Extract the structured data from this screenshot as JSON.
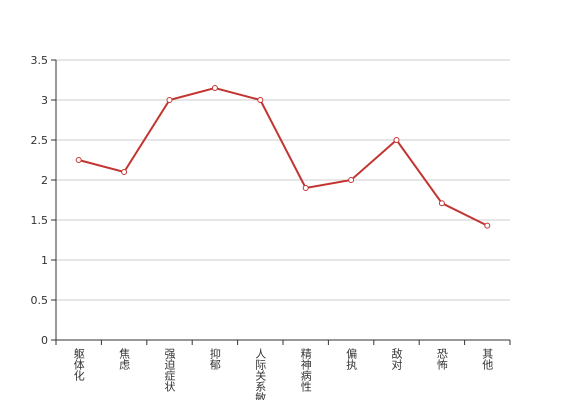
{
  "chart_data": {
    "type": "line",
    "categories": [
      "躯体化",
      "焦虑",
      "强迫症状",
      "抑郁",
      "人际关系敏感",
      "精神病性",
      "偏执",
      "敌对",
      "恐怖",
      "其他"
    ],
    "series": [
      {
        "color": "#c23531",
        "values": [
          2.25,
          2.1,
          3.0,
          3.15,
          3.0,
          1.9,
          2.0,
          2.5,
          1.71,
          1.43
        ]
      }
    ],
    "ylim": [
      0,
      3.5
    ],
    "yticks": [
      0,
      0.5,
      1,
      1.5,
      2,
      2.5,
      3,
      3.5
    ],
    "grid": true
  }
}
